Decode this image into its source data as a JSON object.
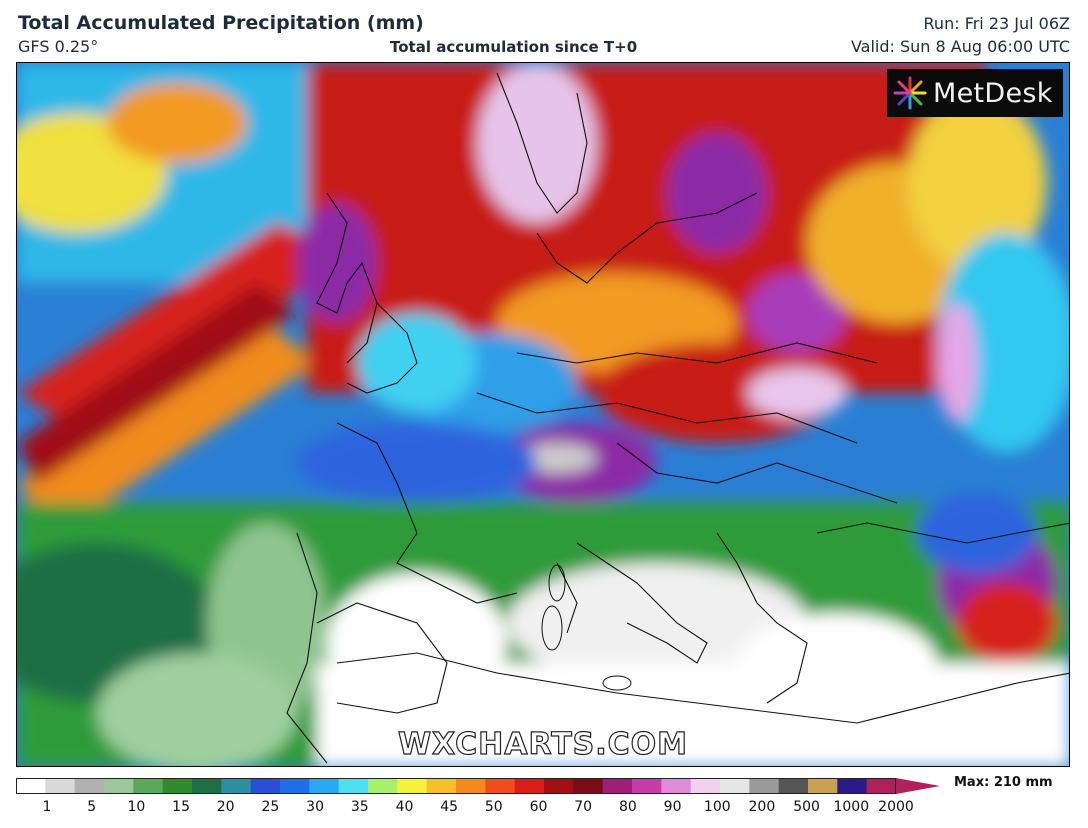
{
  "header": {
    "title": "Total Accumulated Precipitation (mm)",
    "model": "GFS 0.25°",
    "subtitle": "Total accumulation since T+0",
    "run": "Run: Fri 23 Jul 06Z",
    "valid": "Valid: Sun 8 Aug 06:00 UTC"
  },
  "logo": {
    "text": "MetDesk",
    "icon": "metdesk-star-icon"
  },
  "watermark": "WXCHARTS.COM",
  "legend": {
    "max_label": "Max: 210 mm",
    "ticks": [
      "1",
      "5",
      "10",
      "15",
      "20",
      "25",
      "30",
      "35",
      "40",
      "45",
      "50",
      "60",
      "70",
      "80",
      "90",
      "100",
      "200",
      "500",
      "1000",
      "2000"
    ],
    "colors": [
      "#ffffff",
      "#d9d9d9",
      "#b0b0b0",
      "#9bc79b",
      "#5aa95a",
      "#2e8b2e",
      "#1f6e45",
      "#2c8fa1",
      "#2a4fd6",
      "#1f6fe8",
      "#2aa8f0",
      "#4fe0f0",
      "#a8f06a",
      "#f7f23b",
      "#f7c02a",
      "#f48a1e",
      "#ee4f1a",
      "#d71e1a",
      "#a00f12",
      "#7a0c18",
      "#a01e78",
      "#c83ca8",
      "#e08ad8",
      "#f3d2f0",
      "#e6e6e6",
      "#9a9a9a",
      "#555555",
      "#c8a050",
      "#2a1a8a",
      "#b0205a"
    ]
  },
  "colors": {
    "sea_low": "#2a7fd4",
    "dry_land": "#ffffff",
    "green": "#2f9b3a",
    "blue": "#1f5fe0",
    "cyan": "#33c8f0",
    "yellow": "#f5e53a",
    "orange": "#f39a1e",
    "red": "#e0221a",
    "darkred": "#8e0d12",
    "purple": "#8c2aa6",
    "pink": "#e4a6e6"
  }
}
